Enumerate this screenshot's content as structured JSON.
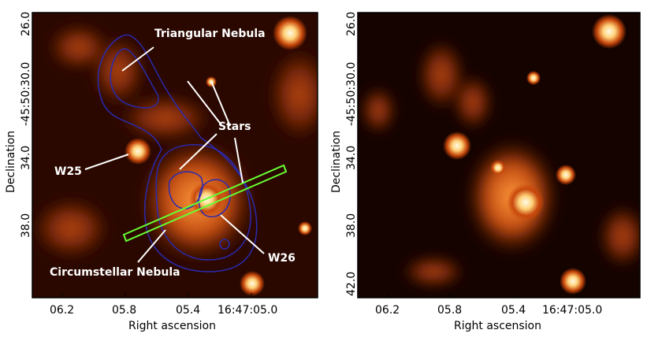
{
  "left_panel": {
    "annotations": {
      "triangular": "Triangular Nebula",
      "stars": "Stars",
      "w25": "W25",
      "circumstellar": "Circumstellar Nebula",
      "w26": "W26"
    },
    "xlabel": "Right ascension",
    "ylabel": "Declination",
    "xticks": [
      "06.2",
      "05.8",
      "05.4",
      "16:47:05.0"
    ],
    "yticks": [
      "26.0",
      "-45:50:30.0",
      "34.0",
      "38.0"
    ]
  },
  "right_panel": {
    "xlabel": "Right ascension",
    "ylabel": "Declination",
    "xticks": [
      "06.2",
      "05.8",
      "05.4",
      "16:47:05.0"
    ],
    "yticks": [
      "26.0",
      "-45:50:30.0",
      "34.0",
      "38.0",
      "42.0"
    ]
  },
  "colors": {
    "background": "#1a0500",
    "emission": "#ff7a1a",
    "contour": "#2a2ab0",
    "slit": "#66ff33",
    "frame": "#000000"
  }
}
